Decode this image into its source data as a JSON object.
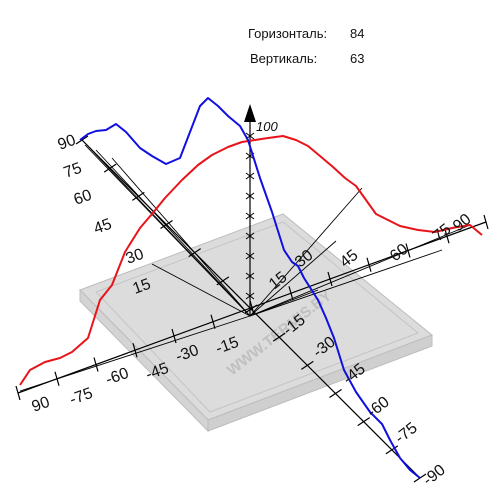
{
  "readouts": {
    "horizontal_label": "Горизонталь:",
    "horizontal_value": "84",
    "vertical_label": "Вертикаль:",
    "vertical_value": "63"
  },
  "watermark": "WWW.TERMIS.BY",
  "chart_data": {
    "type": "line",
    "title": "",
    "axis_max_label": "100",
    "horizontal_ticks": [
      "90",
      "75",
      "60",
      "45",
      "30",
      "15",
      "-15",
      "-30",
      "-45",
      "-60",
      "-75",
      "90"
    ],
    "vertical_ticks": [
      "90",
      "75",
      "60",
      "45",
      "30",
      "15",
      "-15",
      "-30",
      "-45",
      "-60",
      "-75",
      "-90"
    ],
    "colors": {
      "horizontal": "#e8141a",
      "vertical": "#1010e0",
      "axes": "#000000",
      "plate": "#d9d9d9"
    },
    "series": [
      {
        "key": "horizontal",
        "angles": [
          -90,
          -75,
          -60,
          -45,
          -30,
          -15,
          0,
          15,
          30,
          45,
          60,
          75,
          90
        ],
        "values": [
          5,
          18,
          38,
          63,
          82,
          95,
          100,
          97,
          88,
          71,
          48,
          25,
          8
        ]
      },
      {
        "key": "vertical",
        "angles": [
          90,
          75,
          60,
          45,
          30,
          15,
          0,
          -15,
          -30,
          -45,
          -60,
          -75,
          -90
        ],
        "values": [
          48,
          55,
          60,
          68,
          85,
          96,
          100,
          60,
          40,
          32,
          22,
          18,
          5
        ]
      }
    ]
  }
}
